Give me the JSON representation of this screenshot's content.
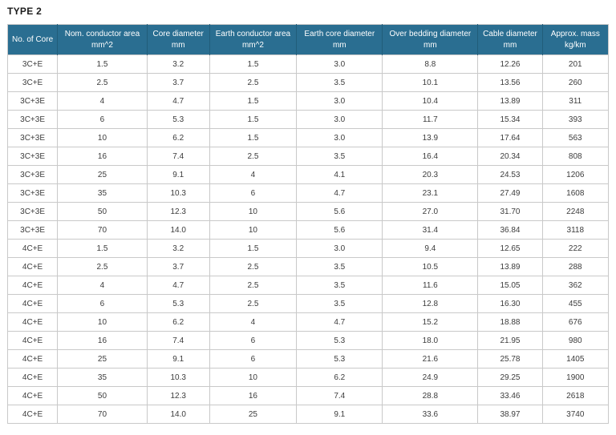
{
  "title": "TYPE 2",
  "colors": {
    "header_bg": "#2a6e91",
    "header_text": "#ffffff",
    "header_divider": "#215d7a",
    "grid": "#c9c9c9",
    "cell_text": "#3c3c3c"
  },
  "table": {
    "columns": [
      {
        "key": "no-of-core",
        "label": "No. of Core",
        "unit": ""
      },
      {
        "key": "nom-conductor-area",
        "label": "Nom. conductor area",
        "unit": "mm^2"
      },
      {
        "key": "core-diameter",
        "label": "Core diameter",
        "unit": "mm"
      },
      {
        "key": "earth-conductor-area",
        "label": "Earth conductor area",
        "unit": "mm^2"
      },
      {
        "key": "earth-core-diameter",
        "label": "Earth core diameter",
        "unit": "mm"
      },
      {
        "key": "over-bedding-diameter",
        "label": "Over bedding diameter",
        "unit": "mm"
      },
      {
        "key": "cable-diameter",
        "label": "Cable diameter",
        "unit": "mm"
      },
      {
        "key": "approx-mass",
        "label": "Approx. mass",
        "unit": "kg/km"
      }
    ],
    "col_widths_pct": [
      8.3,
      14.9,
      10.4,
      14.5,
      14.3,
      15.9,
      10.7,
      11.0
    ],
    "rows": [
      [
        "3C+E",
        "1.5",
        "3.2",
        "1.5",
        "3.0",
        "8.8",
        "12.26",
        "201"
      ],
      [
        "3C+E",
        "2.5",
        "3.7",
        "2.5",
        "3.5",
        "10.1",
        "13.56",
        "260"
      ],
      [
        "3C+3E",
        "4",
        "4.7",
        "1.5",
        "3.0",
        "10.4",
        "13.89",
        "311"
      ],
      [
        "3C+3E",
        "6",
        "5.3",
        "1.5",
        "3.0",
        "11.7",
        "15.34",
        "393"
      ],
      [
        "3C+3E",
        "10",
        "6.2",
        "1.5",
        "3.0",
        "13.9",
        "17.64",
        "563"
      ],
      [
        "3C+3E",
        "16",
        "7.4",
        "2.5",
        "3.5",
        "16.4",
        "20.34",
        "808"
      ],
      [
        "3C+3E",
        "25",
        "9.1",
        "4",
        "4.1",
        "20.3",
        "24.53",
        "1206"
      ],
      [
        "3C+3E",
        "35",
        "10.3",
        "6",
        "4.7",
        "23.1",
        "27.49",
        "1608"
      ],
      [
        "3C+3E",
        "50",
        "12.3",
        "10",
        "5.6",
        "27.0",
        "31.70",
        "2248"
      ],
      [
        "3C+3E",
        "70",
        "14.0",
        "10",
        "5.6",
        "31.4",
        "36.84",
        "3118"
      ],
      [
        "4C+E",
        "1.5",
        "3.2",
        "1.5",
        "3.0",
        "9.4",
        "12.65",
        "222"
      ],
      [
        "4C+E",
        "2.5",
        "3.7",
        "2.5",
        "3.5",
        "10.5",
        "13.89",
        "288"
      ],
      [
        "4C+E",
        "4",
        "4.7",
        "2.5",
        "3.5",
        "11.6",
        "15.05",
        "362"
      ],
      [
        "4C+E",
        "6",
        "5.3",
        "2.5",
        "3.5",
        "12.8",
        "16.30",
        "455"
      ],
      [
        "4C+E",
        "10",
        "6.2",
        "4",
        "4.7",
        "15.2",
        "18.88",
        "676"
      ],
      [
        "4C+E",
        "16",
        "7.4",
        "6",
        "5.3",
        "18.0",
        "21.95",
        "980"
      ],
      [
        "4C+E",
        "25",
        "9.1",
        "6",
        "5.3",
        "21.6",
        "25.78",
        "1405"
      ],
      [
        "4C+E",
        "35",
        "10.3",
        "10",
        "6.2",
        "24.9",
        "29.25",
        "1900"
      ],
      [
        "4C+E",
        "50",
        "12.3",
        "16",
        "7.4",
        "28.8",
        "33.46",
        "2618"
      ],
      [
        "4C+E",
        "70",
        "14.0",
        "25",
        "9.1",
        "33.6",
        "38.97",
        "3740"
      ]
    ]
  }
}
